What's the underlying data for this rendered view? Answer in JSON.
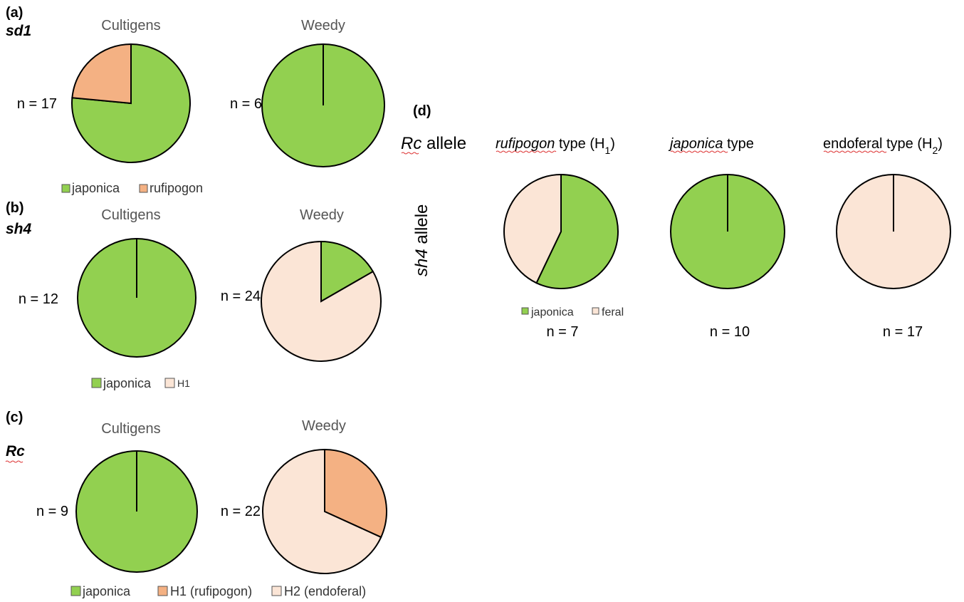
{
  "colors": {
    "japonica": "#92d050",
    "rufipogon": "#f4b183",
    "light": "#fbe5d6",
    "outline": "#000000"
  },
  "panels": {
    "a": {
      "label": "(a)",
      "gene": "sd1",
      "left_title": "Cultigens",
      "right_title": "Weedy",
      "left_n": "n = 17",
      "right_n": "n = 6",
      "legend": [
        "japonica",
        "rufipogon"
      ]
    },
    "b": {
      "label": "(b)",
      "gene": "sh4",
      "left_title": "Cultigens",
      "right_title": "Weedy",
      "left_n": "n = 12",
      "right_n": "n = 24",
      "legend": [
        "japonica",
        "H1"
      ]
    },
    "c": {
      "label": "(c)",
      "gene": "Rc",
      "left_title": "Cultigens",
      "right_title": "Weedy",
      "left_n": "n = 9",
      "right_n": "n = 22",
      "legend": [
        "japonica",
        "H1 (rufipogon)",
        "H2 (endoferal)"
      ]
    },
    "d": {
      "label": "(d)",
      "row_title": "Rc allele",
      "row_title_gene": "Rc",
      "row_title_rest": " allele",
      "col_axis_gene": "sh4",
      "col_axis_rest": " allele",
      "columns": [
        {
          "title_gene": "rufipogon",
          "title_rest": " type (H",
          "sub": "1",
          "close": ")",
          "n": "n = 7"
        },
        {
          "title_gene": "japonica",
          "title_rest": " type",
          "sub": "",
          "close": "",
          "n": "n = 10"
        },
        {
          "title_gene": "endoferal",
          "title_rest": " type (H",
          "sub": "2",
          "close": ")",
          "n": "n = 17"
        }
      ],
      "legend": [
        "japonica",
        "feral"
      ]
    }
  },
  "chart_data": [
    {
      "type": "pie",
      "panel": "a",
      "group": "Cultigens",
      "n": 17,
      "slices": [
        {
          "label": "japonica",
          "value": 0.765,
          "color": "#92d050"
        },
        {
          "label": "rufipogon",
          "value": 0.235,
          "color": "#f4b183"
        }
      ]
    },
    {
      "type": "pie",
      "panel": "a",
      "group": "Weedy",
      "n": 6,
      "slices": [
        {
          "label": "japonica",
          "value": 1.0,
          "color": "#92d050"
        }
      ]
    },
    {
      "type": "pie",
      "panel": "b",
      "group": "Cultigens",
      "n": 12,
      "slices": [
        {
          "label": "japonica",
          "value": 1.0,
          "color": "#92d050"
        }
      ]
    },
    {
      "type": "pie",
      "panel": "b",
      "group": "Weedy",
      "n": 24,
      "slices": [
        {
          "label": "japonica",
          "value": 0.167,
          "color": "#92d050"
        },
        {
          "label": "H1",
          "value": 0.833,
          "color": "#fbe5d6"
        }
      ]
    },
    {
      "type": "pie",
      "panel": "c",
      "group": "Cultigens",
      "n": 9,
      "slices": [
        {
          "label": "japonica",
          "value": 1.0,
          "color": "#92d050"
        }
      ]
    },
    {
      "type": "pie",
      "panel": "c",
      "group": "Weedy",
      "n": 22,
      "slices": [
        {
          "label": "H1 (rufipogon)",
          "value": 0.318,
          "color": "#f4b183"
        },
        {
          "label": "H2 (endoferal)",
          "value": 0.682,
          "color": "#fbe5d6"
        }
      ]
    },
    {
      "type": "pie",
      "panel": "d",
      "group": "rufipogon type (H1)",
      "n": 7,
      "slices": [
        {
          "label": "japonica",
          "value": 0.571,
          "color": "#92d050"
        },
        {
          "label": "feral",
          "value": 0.429,
          "color": "#fbe5d6"
        }
      ]
    },
    {
      "type": "pie",
      "panel": "d",
      "group": "japonica type",
      "n": 10,
      "slices": [
        {
          "label": "japonica",
          "value": 1.0,
          "color": "#92d050"
        }
      ]
    },
    {
      "type": "pie",
      "panel": "d",
      "group": "endoferal type (H2)",
      "n": 17,
      "slices": [
        {
          "label": "feral",
          "value": 1.0,
          "color": "#fbe5d6"
        }
      ]
    }
  ]
}
